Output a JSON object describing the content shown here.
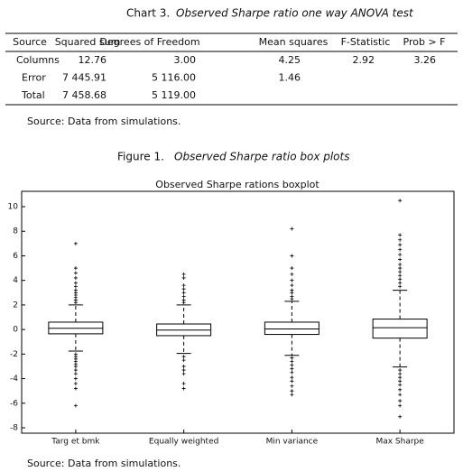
{
  "header": {
    "label": "Chart 3.",
    "title": "Observed Sharpe ratio one way ANOVA test"
  },
  "table": {
    "columns": [
      "Source",
      "Squared sum",
      "Degrees of Freedom",
      "Mean squares",
      "F-Statistic",
      "Prob > F"
    ],
    "rows": [
      [
        "Columns",
        "12.76",
        "3.00",
        "4.25",
        "2.92",
        "3.26"
      ],
      [
        "Error",
        "7 445.91",
        "5 116.00",
        "1.46"
      ],
      [
        "Total",
        "7 458.68",
        "5 119.00"
      ]
    ],
    "source": "Source: Data from simulations."
  },
  "figure": {
    "label": "Figure 1.",
    "title": "Observed Sharpe ratio box plots",
    "source": "Source: Data from simulations."
  },
  "chart_data": {
    "type": "box",
    "title": "Observed Sharpe rations boxplot",
    "categories": [
      "Targ et bmk",
      "Equally weighted",
      "Min variance",
      "Max Sharpe"
    ],
    "boxes": [
      {
        "whisker_low": -1.75,
        "q1": -0.35,
        "median": 0.1,
        "q3": 0.6,
        "whisker_high": 2.0,
        "outliers": [
          7.0,
          5.0,
          4.6,
          4.2,
          3.8,
          3.5,
          3.2,
          3.0,
          2.8,
          2.6,
          2.4,
          2.2,
          -2.0,
          -2.2,
          -2.4,
          -2.6,
          -2.8,
          -3.0,
          -3.3,
          -3.6,
          -4.0,
          -4.4,
          -4.8,
          -6.2
        ]
      },
      {
        "whisker_low": -1.95,
        "q1": -0.5,
        "median": -0.05,
        "q3": 0.45,
        "whisker_high": 2.0,
        "outliers": [
          4.5,
          4.2,
          3.6,
          3.3,
          3.0,
          2.7,
          2.4,
          2.2,
          -2.2,
          -2.5,
          -3.0,
          -3.3,
          -3.6,
          -4.4,
          -4.8
        ]
      },
      {
        "whisker_low": -2.1,
        "q1": -0.4,
        "median": 0.05,
        "q3": 0.6,
        "whisker_high": 2.3,
        "outliers": [
          8.2,
          6.0,
          5.0,
          4.5,
          4.0,
          3.6,
          3.2,
          3.0,
          2.7,
          2.5,
          -2.3,
          -2.6,
          -2.9,
          -3.2,
          -3.5,
          -3.9,
          -4.2,
          -4.6,
          -5.0,
          -5.3
        ]
      },
      {
        "whisker_low": -3.05,
        "q1": -0.7,
        "median": 0.15,
        "q3": 0.85,
        "whisker_high": 3.2,
        "outliers": [
          10.5,
          7.7,
          7.3,
          6.9,
          6.5,
          6.1,
          5.7,
          5.3,
          5.0,
          4.7,
          4.4,
          4.1,
          3.8,
          3.5,
          -3.3,
          -3.6,
          -3.9,
          -4.2,
          -4.5,
          -4.9,
          -5.3,
          -5.8,
          -6.2,
          -7.1
        ]
      }
    ],
    "ylim": [
      -8.44,
      11.25
    ],
    "yticks": [
      -8,
      -6,
      -4,
      -2,
      0,
      2,
      4,
      6,
      8,
      10
    ]
  }
}
